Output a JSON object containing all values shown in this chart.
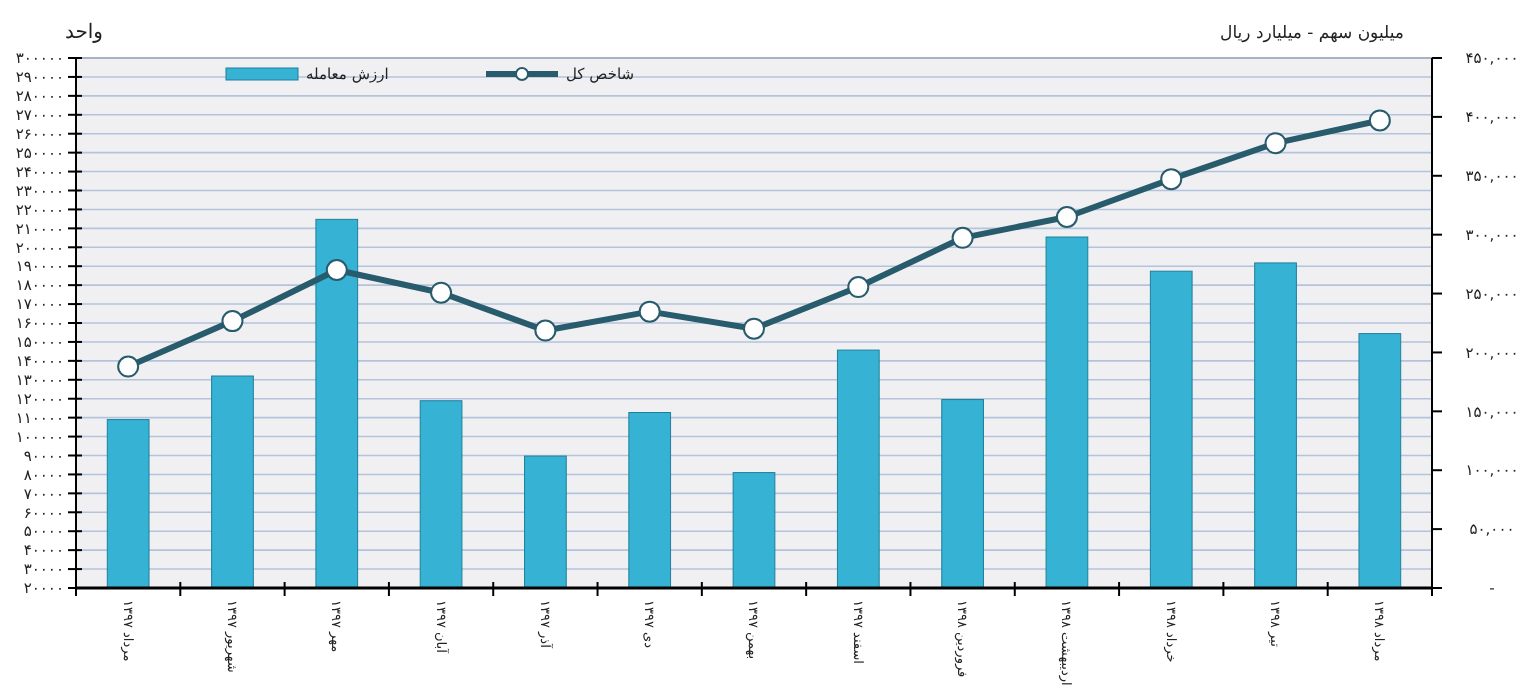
{
  "chart_data": {
    "type": "bar",
    "ylabel": "واحد",
    "y2label": "میلیون سهم - میلیارد ریال",
    "categories": [
      "مرداد ۱۳۹۷",
      "شهریور ۱۳۹۷",
      "مهر ۱۳۹۷",
      "آبان ۱۳۹۷",
      "آذر ۱۳۹۷",
      "دی ۱۳۹۷",
      "بهمن ۱۳۹۷",
      "اسفند ۱۳۹۷",
      "فروردین ۱۳۹۸",
      "اردیبهشت ۱۳۹۸",
      "خرداد ۱۳۹۸",
      "تیر ۱۳۹۸",
      "مرداد ۱۳۹۸"
    ],
    "series": [
      {
        "name": "ارزش معامله",
        "color": "#35b2d4",
        "axis": "y2",
        "values": [
          143000,
          180000,
          313000,
          159000,
          112000,
          149000,
          98000,
          202000,
          160000,
          298000,
          269000,
          276000,
          216000
        ]
      },
      {
        "type": "line",
        "name": "شاخص کل",
        "color": "#285b6b",
        "marker": "circle",
        "values": [
          137000,
          161000,
          188000,
          176000,
          156000,
          166000,
          157000,
          179000,
          205000,
          216000,
          236000,
          255000,
          267000
        ]
      }
    ],
    "ylim": [
      20000,
      300000
    ],
    "yticks": [
      {
        "value": 20000,
        "label": "۲۰۰۰۰"
      },
      {
        "value": 30000,
        "label": "۳۰۰۰۰"
      },
      {
        "value": 40000,
        "label": "۴۰۰۰۰"
      },
      {
        "value": 50000,
        "label": "۵۰۰۰۰"
      },
      {
        "value": 60000,
        "label": "۶۰۰۰۰"
      },
      {
        "value": 70000,
        "label": "۷۰۰۰۰"
      },
      {
        "value": 80000,
        "label": "۸۰۰۰۰"
      },
      {
        "value": 90000,
        "label": "۹۰۰۰۰"
      },
      {
        "value": 100000,
        "label": "۱۰۰۰۰۰"
      },
      {
        "value": 110000,
        "label": "۱۱۰۰۰۰"
      },
      {
        "value": 120000,
        "label": "۱۲۰۰۰۰"
      },
      {
        "value": 130000,
        "label": "۱۳۰۰۰۰"
      },
      {
        "value": 140000,
        "label": "۱۴۰۰۰۰"
      },
      {
        "value": 150000,
        "label": "۱۵۰۰۰۰"
      },
      {
        "value": 160000,
        "label": "۱۶۰۰۰۰"
      },
      {
        "value": 170000,
        "label": "۱۷۰۰۰۰"
      },
      {
        "value": 180000,
        "label": "۱۸۰۰۰۰"
      },
      {
        "value": 190000,
        "label": "۱۹۰۰۰۰"
      },
      {
        "value": 200000,
        "label": "۲۰۰۰۰۰"
      },
      {
        "value": 210000,
        "label": "۲۱۰۰۰۰"
      },
      {
        "value": 220000,
        "label": "۲۲۰۰۰۰"
      },
      {
        "value": 230000,
        "label": "۲۳۰۰۰۰"
      },
      {
        "value": 240000,
        "label": "۲۴۰۰۰۰"
      },
      {
        "value": 250000,
        "label": "۲۵۰۰۰۰"
      },
      {
        "value": 260000,
        "label": "۲۶۰۰۰۰"
      },
      {
        "value": 270000,
        "label": "۲۷۰۰۰۰"
      },
      {
        "value": 280000,
        "label": "۲۸۰۰۰۰"
      },
      {
        "value": 290000,
        "label": "۲۹۰۰۰۰"
      },
      {
        "value": 300000,
        "label": "۳۰۰۰۰۰"
      }
    ],
    "y2lim": [
      0,
      450000
    ],
    "y2ticks": [
      {
        "value": 0,
        "label": "-"
      },
      {
        "value": 50000,
        "label": "۵۰,۰۰۰"
      },
      {
        "value": 100000,
        "label": "۱۰۰,۰۰۰"
      },
      {
        "value": 150000,
        "label": "۱۵۰,۰۰۰"
      },
      {
        "value": 200000,
        "label": "۲۰۰,۰۰۰"
      },
      {
        "value": 250000,
        "label": "۲۵۰,۰۰۰"
      },
      {
        "value": 300000,
        "label": "۳۰۰,۰۰۰"
      },
      {
        "value": 350000,
        "label": "۳۵۰,۰۰۰"
      },
      {
        "value": 400000,
        "label": "۴۰۰,۰۰۰"
      },
      {
        "value": 450000,
        "label": "۴۵۰,۰۰۰"
      }
    ],
    "grid": "y",
    "legend": "top left"
  }
}
